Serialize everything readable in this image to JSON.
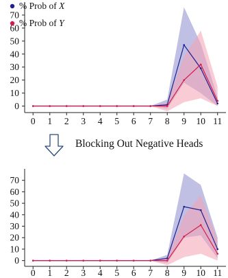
{
  "colors": {
    "series_x": "#1f1f8f",
    "series_y": "#d81b4a",
    "band_x": "#8c8cd0",
    "band_y": "#f4a0b0"
  },
  "caption": {
    "text": "Blocking Out Negative Heads",
    "arrow_icon": "down-arrow-outline-icon"
  },
  "chart_data": [
    {
      "type": "line",
      "x": [
        0,
        1,
        2,
        3,
        4,
        5,
        6,
        7,
        8,
        9,
        10,
        11
      ],
      "xlim": [
        -0.5,
        11.5
      ],
      "ylim": [
        -5,
        80
      ],
      "yticks": [
        0,
        10,
        20,
        30,
        40,
        50,
        60,
        70
      ],
      "grid": false,
      "legend": "top-left",
      "legend_entries": [
        "% Prob of ",
        "% Prob of "
      ],
      "legend_italic": [
        "X",
        "Y"
      ],
      "series": [
        {
          "name": "% Prob of X",
          "color": "#1f1f8f",
          "values": [
            0,
            0,
            0,
            0,
            0,
            0,
            0,
            0,
            1,
            47,
            29,
            2
          ],
          "band_upper": [
            0,
            0,
            0,
            0,
            0,
            0,
            0,
            0,
            5,
            76,
            48,
            7
          ],
          "band_lower": [
            0,
            0,
            0,
            0,
            0,
            0,
            0,
            0,
            -2,
            18,
            10,
            0
          ]
        },
        {
          "name": "% Prob of Y",
          "color": "#d81b4a",
          "values": [
            0,
            0,
            0,
            0,
            0,
            0,
            0,
            0,
            0,
            20,
            32,
            4
          ],
          "band_upper": [
            0,
            0,
            0,
            0,
            0,
            0,
            0,
            0,
            3,
            38,
            58,
            15
          ],
          "band_lower": [
            0,
            0,
            0,
            0,
            0,
            0,
            0,
            0,
            -4,
            3,
            6,
            0
          ]
        }
      ]
    },
    {
      "type": "line",
      "x": [
        0,
        1,
        2,
        3,
        4,
        5,
        6,
        7,
        8,
        9,
        10,
        11
      ],
      "xlim": [
        -0.5,
        11.5
      ],
      "ylim": [
        -5,
        80
      ],
      "yticks": [
        0,
        10,
        20,
        30,
        40,
        50,
        60,
        70
      ],
      "grid": false,
      "series": [
        {
          "color": "#1f1f8f",
          "values": [
            0,
            0,
            0,
            0,
            0,
            0,
            0,
            0,
            2,
            47,
            44,
            10
          ],
          "band_upper": [
            0,
            0,
            0,
            0,
            0,
            0,
            0,
            0,
            5,
            76,
            66,
            20
          ],
          "band_lower": [
            0,
            0,
            0,
            0,
            0,
            0,
            0,
            0,
            -2,
            20,
            22,
            2
          ]
        },
        {
          "color": "#d81b4a",
          "values": [
            0,
            0,
            0,
            0,
            0,
            0,
            0,
            0,
            0,
            21,
            31,
            6
          ],
          "band_upper": [
            0,
            0,
            0,
            0,
            0,
            0,
            0,
            0,
            3,
            39,
            57,
            18
          ],
          "band_lower": [
            0,
            0,
            0,
            0,
            0,
            0,
            0,
            0,
            -4,
            3,
            6,
            0
          ]
        }
      ]
    }
  ]
}
